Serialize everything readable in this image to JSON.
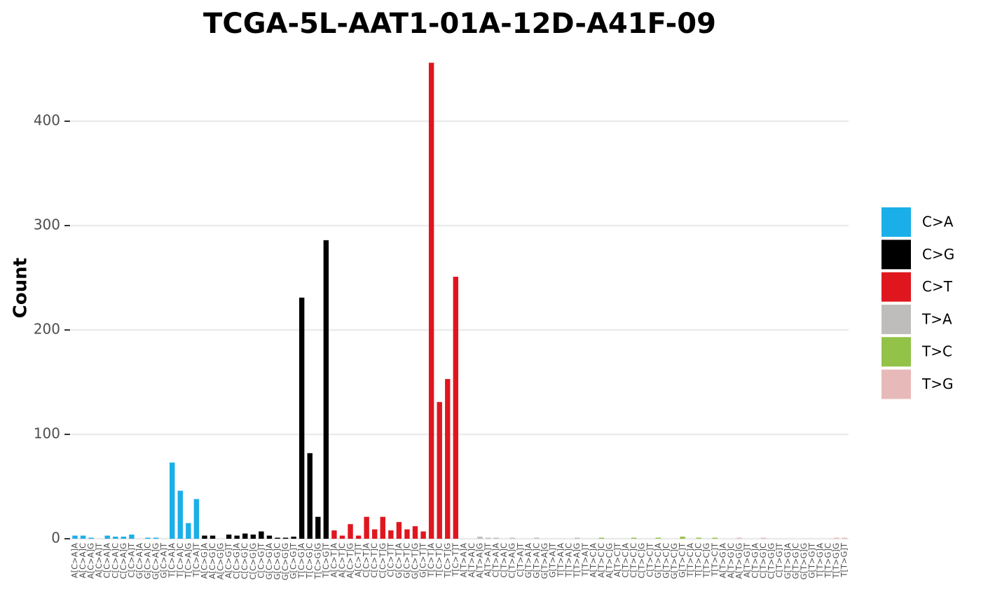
{
  "chart_data": {
    "type": "bar",
    "title": "TCGA-5L-AAT1-01A-12D-A41F-09",
    "y_label": "Count",
    "categories": [
      "A[C>A]A",
      "A[C>A]C",
      "A[C>A]G",
      "A[C>A]T",
      "C[C>A]A",
      "C[C>A]C",
      "C[C>A]G",
      "C[C>A]T",
      "G[C>A]A",
      "G[C>A]C",
      "G[C>A]G",
      "G[C>A]T",
      "T[C>A]A",
      "T[C>A]C",
      "T[C>A]G",
      "T[C>A]T",
      "A[C>G]A",
      "A[C>G]C",
      "A[C>G]G",
      "A[C>G]T",
      "C[C>G]A",
      "C[C>G]C",
      "C[C>G]G",
      "C[C>G]T",
      "G[C>G]A",
      "G[C>G]C",
      "G[C>G]G",
      "G[C>G]T",
      "T[C>G]A",
      "T[C>G]C",
      "T[C>G]G",
      "T[C>G]T",
      "A[C>T]A",
      "A[C>T]C",
      "A[C>T]G",
      "A[C>T]T",
      "C[C>T]A",
      "C[C>T]C",
      "C[C>T]G",
      "C[C>T]T",
      "G[C>T]A",
      "G[C>T]C",
      "G[C>T]G",
      "G[C>T]T",
      "T[C>T]A",
      "T[C>T]C",
      "T[C>T]G",
      "T[C>T]T",
      "A[T>A]A",
      "A[T>A]C",
      "A[T>A]G",
      "A[T>A]T",
      "C[T>A]A",
      "C[T>A]C",
      "C[T>A]G",
      "C[T>A]T",
      "G[T>A]A",
      "G[T>A]C",
      "G[T>A]G",
      "G[T>A]T",
      "T[T>A]A",
      "T[T>A]C",
      "T[T>A]G",
      "T[T>A]T",
      "A[T>C]A",
      "A[T>C]C",
      "A[T>C]G",
      "A[T>C]T",
      "C[T>C]A",
      "C[T>C]C",
      "C[T>C]G",
      "C[T>C]T",
      "G[T>C]A",
      "G[T>C]C",
      "G[T>C]G",
      "G[T>C]T",
      "T[T>C]A",
      "T[T>C]C",
      "T[T>C]G",
      "T[T>C]T",
      "A[T>G]A",
      "A[T>G]C",
      "A[T>G]G",
      "A[T>G]T",
      "C[T>G]A",
      "C[T>G]C",
      "C[T>G]G",
      "C[T>G]T",
      "G[T>G]A",
      "G[T>G]C",
      "G[T>G]G",
      "G[T>G]T",
      "T[T>G]A",
      "T[T>G]C",
      "T[T>G]G",
      "T[T>G]T"
    ],
    "series": [
      {
        "name": "C>A",
        "color": "#1aafe8",
        "values": [
          3,
          3,
          1,
          0,
          3,
          2,
          2,
          4,
          0,
          1,
          1,
          0,
          73,
          46,
          15,
          38,
          null,
          null,
          null,
          null,
          null,
          null,
          null,
          null,
          null,
          null,
          null,
          null,
          null,
          null,
          null,
          null,
          null,
          null,
          null,
          null,
          null,
          null,
          null,
          null,
          null,
          null,
          null,
          null,
          null,
          null,
          null,
          null,
          null,
          null,
          null,
          null,
          null,
          null,
          null,
          null,
          null,
          null,
          null,
          null,
          null,
          null,
          null,
          null,
          null,
          null,
          null,
          null,
          null,
          null,
          null,
          null,
          null,
          null,
          null,
          null,
          null,
          null,
          null,
          null,
          null,
          null,
          null,
          null,
          null,
          null,
          null,
          null,
          null,
          null,
          null,
          null,
          null,
          null,
          null,
          null
        ]
      },
      {
        "name": "C>G",
        "color": "#000000",
        "values": [
          null,
          null,
          null,
          null,
          null,
          null,
          null,
          null,
          null,
          null,
          null,
          null,
          null,
          null,
          null,
          null,
          3,
          3,
          0,
          4,
          3,
          5,
          4,
          7,
          3,
          1,
          1,
          2,
          231,
          82,
          21,
          286,
          null,
          null,
          null,
          null,
          null,
          null,
          null,
          null,
          null,
          null,
          null,
          null,
          null,
          null,
          null,
          null,
          null,
          null,
          null,
          null,
          null,
          null,
          null,
          null,
          null,
          null,
          null,
          null,
          null,
          null,
          null,
          null,
          null,
          null,
          null,
          null,
          null,
          null,
          null,
          null,
          null,
          null,
          null,
          null,
          null,
          null,
          null,
          null,
          null,
          null,
          null,
          null,
          null,
          null,
          null,
          null,
          null,
          null,
          null,
          null,
          null,
          null,
          null,
          null
        ]
      },
      {
        "name": "C>T",
        "color": "#e0161f",
        "values": [
          null,
          null,
          null,
          null,
          null,
          null,
          null,
          null,
          null,
          null,
          null,
          null,
          null,
          null,
          null,
          null,
          null,
          null,
          null,
          null,
          null,
          null,
          null,
          null,
          null,
          null,
          null,
          null,
          null,
          null,
          null,
          null,
          8,
          3,
          14,
          3,
          21,
          9,
          21,
          8,
          16,
          9,
          12,
          7,
          456,
          131,
          153,
          251,
          null,
          null,
          null,
          null,
          null,
          null,
          null,
          null,
          null,
          null,
          null,
          null,
          null,
          null,
          null,
          null,
          null,
          null,
          null,
          null,
          null,
          null,
          null,
          null,
          null,
          null,
          null,
          null,
          null,
          null,
          null,
          null,
          null,
          null,
          null,
          null,
          null,
          null,
          null,
          null,
          null,
          null,
          null,
          null,
          null,
          null,
          null,
          null
        ]
      },
      {
        "name": "T>A",
        "color": "#bfbcbc",
        "values": [
          null,
          null,
          null,
          null,
          null,
          null,
          null,
          null,
          null,
          null,
          null,
          null,
          null,
          null,
          null,
          null,
          null,
          null,
          null,
          null,
          null,
          null,
          null,
          null,
          null,
          null,
          null,
          null,
          null,
          null,
          null,
          null,
          null,
          null,
          null,
          null,
          null,
          null,
          null,
          null,
          null,
          null,
          null,
          null,
          null,
          null,
          null,
          null,
          0,
          0,
          2,
          1,
          1,
          0,
          1,
          0,
          0,
          1,
          0,
          0,
          0,
          0,
          1,
          0,
          null,
          null,
          null,
          null,
          null,
          null,
          null,
          null,
          null,
          null,
          null,
          null,
          null,
          null,
          null,
          null,
          null,
          null,
          null,
          null,
          null,
          null,
          null,
          null,
          null,
          null,
          null,
          null,
          null,
          null,
          null,
          null
        ]
      },
      {
        "name": "T>C",
        "color": "#93c248",
        "values": [
          null,
          null,
          null,
          null,
          null,
          null,
          null,
          null,
          null,
          null,
          null,
          null,
          null,
          null,
          null,
          null,
          null,
          null,
          null,
          null,
          null,
          null,
          null,
          null,
          null,
          null,
          null,
          null,
          null,
          null,
          null,
          null,
          null,
          null,
          null,
          null,
          null,
          null,
          null,
          null,
          null,
          null,
          null,
          null,
          null,
          null,
          null,
          null,
          null,
          null,
          null,
          null,
          null,
          null,
          null,
          null,
          null,
          null,
          null,
          null,
          null,
          null,
          null,
          null,
          0,
          1,
          0,
          0,
          0,
          1,
          0,
          0,
          1,
          0,
          0,
          2,
          0,
          1,
          0,
          1,
          null,
          null,
          null,
          null,
          null,
          null,
          null,
          null,
          null,
          null,
          null,
          null,
          null,
          null,
          null,
          null
        ]
      },
      {
        "name": "T>G",
        "color": "#e8b9b9",
        "values": [
          null,
          null,
          null,
          null,
          null,
          null,
          null,
          null,
          null,
          null,
          null,
          null,
          null,
          null,
          null,
          null,
          null,
          null,
          null,
          null,
          null,
          null,
          null,
          null,
          null,
          null,
          null,
          null,
          null,
          null,
          null,
          null,
          null,
          null,
          null,
          null,
          null,
          null,
          null,
          null,
          null,
          null,
          null,
          null,
          null,
          null,
          null,
          null,
          null,
          null,
          null,
          null,
          null,
          null,
          null,
          null,
          null,
          null,
          null,
          null,
          null,
          null,
          null,
          null,
          null,
          null,
          null,
          null,
          null,
          null,
          null,
          null,
          null,
          null,
          null,
          null,
          null,
          null,
          null,
          null,
          0,
          0,
          1,
          0,
          0,
          1,
          0,
          0,
          0,
          0,
          0,
          0,
          0,
          0,
          1,
          1
        ]
      }
    ],
    "ylim": [
      0,
      460
    ],
    "yticks": [
      0,
      100,
      200,
      300,
      400
    ],
    "grid": true,
    "legend": "right"
  }
}
